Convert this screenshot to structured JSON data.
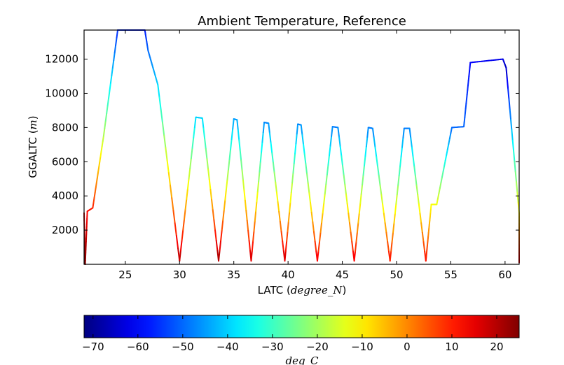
{
  "chart_data": {
    "type": "line",
    "title": "Ambient Temperature, Reference",
    "xlabel": "LATC",
    "xlabel_unit": "degree_N",
    "ylabel": "GGALTC",
    "ylabel_unit": "m",
    "xlim": [
      21.2,
      61.3
    ],
    "ylim": [
      0,
      13700
    ],
    "xticks": [
      25,
      30,
      35,
      40,
      45,
      50,
      55,
      60
    ],
    "yticks": [
      2000,
      4000,
      6000,
      8000,
      10000,
      12000
    ],
    "grid": false,
    "color_variable": "Ambient Temperature",
    "series": [
      {
        "values": [
          {
            "x": 21.2,
            "y": 3000,
            "t": 15
          },
          {
            "x": 21.3,
            "y": 0,
            "t": 25
          },
          {
            "x": 21.5,
            "y": 3100,
            "t": 12
          },
          {
            "x": 22.0,
            "y": 3300,
            "t": 10
          },
          {
            "x": 23.0,
            "y": 7500,
            "t": -18
          },
          {
            "x": 24.3,
            "y": 13700,
            "t": -56
          },
          {
            "x": 26.8,
            "y": 13700,
            "t": -58
          },
          {
            "x": 27.1,
            "y": 12500,
            "t": -50
          },
          {
            "x": 28.0,
            "y": 10500,
            "t": -40
          },
          {
            "x": 30.0,
            "y": 200,
            "t": 20
          },
          {
            "x": 31.5,
            "y": 8600,
            "t": -40
          },
          {
            "x": 32.1,
            "y": 8550,
            "t": -40
          },
          {
            "x": 33.6,
            "y": 200,
            "t": 22
          },
          {
            "x": 35.0,
            "y": 8500,
            "t": -45
          },
          {
            "x": 35.3,
            "y": 8450,
            "t": -45
          },
          {
            "x": 36.6,
            "y": 200,
            "t": 18
          },
          {
            "x": 37.8,
            "y": 8300,
            "t": -47
          },
          {
            "x": 38.2,
            "y": 8250,
            "t": -47
          },
          {
            "x": 39.7,
            "y": 200,
            "t": 18
          },
          {
            "x": 40.9,
            "y": 8200,
            "t": -47
          },
          {
            "x": 41.2,
            "y": 8150,
            "t": -47
          },
          {
            "x": 42.7,
            "y": 200,
            "t": 15
          },
          {
            "x": 44.1,
            "y": 8050,
            "t": -48
          },
          {
            "x": 44.6,
            "y": 8000,
            "t": -48
          },
          {
            "x": 46.1,
            "y": 200,
            "t": 15
          },
          {
            "x": 47.4,
            "y": 8000,
            "t": -48
          },
          {
            "x": 47.8,
            "y": 7950,
            "t": -48
          },
          {
            "x": 49.4,
            "y": 200,
            "t": 12
          },
          {
            "x": 50.7,
            "y": 7950,
            "t": -48
          },
          {
            "x": 51.2,
            "y": 7950,
            "t": -48
          },
          {
            "x": 52.7,
            "y": 200,
            "t": 12
          },
          {
            "x": 53.2,
            "y": 3500,
            "t": -12
          },
          {
            "x": 53.7,
            "y": 3500,
            "t": -12
          },
          {
            "x": 55.1,
            "y": 8000,
            "t": -50
          },
          {
            "x": 56.2,
            "y": 8050,
            "t": -50
          },
          {
            "x": 56.8,
            "y": 11800,
            "t": -60
          },
          {
            "x": 59.8,
            "y": 12000,
            "t": -62
          },
          {
            "x": 60.1,
            "y": 11500,
            "t": -66
          },
          {
            "x": 61.3,
            "y": 3000,
            "t": -10
          },
          {
            "x": 61.3,
            "y": 100,
            "t": 15
          }
        ]
      }
    ],
    "colorbar": {
      "colormap": "jet",
      "range": [
        -72,
        25
      ],
      "ticks": [
        -70,
        -60,
        -50,
        -40,
        -30,
        -20,
        -10,
        0,
        10,
        20
      ],
      "tick_labels": [
        "−70",
        "−60",
        "−50",
        "−40",
        "−30",
        "−20",
        "−10",
        "0",
        "10",
        "20"
      ],
      "orientation": "horizontal",
      "label": "deg_C"
    }
  }
}
